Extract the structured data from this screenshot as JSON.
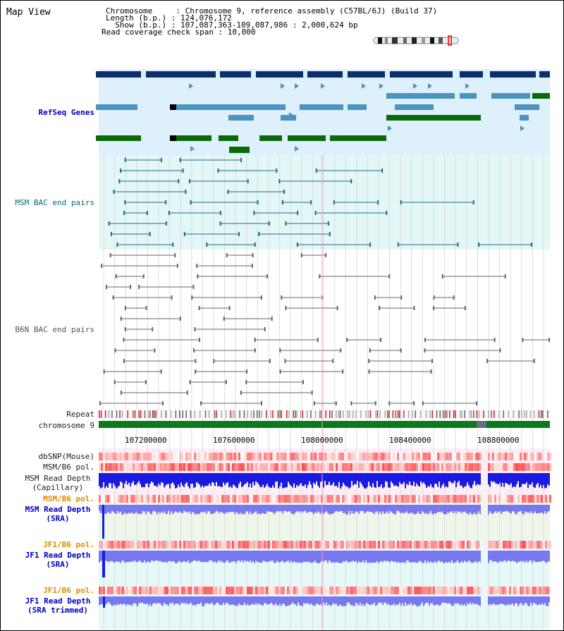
{
  "title": "Map View",
  "info": {
    "chromosome": "Chromosome     : Chromosome 9, reference assembly (C57BL/6J) (Build 37)",
    "length": "Length (b.p.) : 124,076,172",
    "show": "  Show (b.p.) : 107,087,363-109,087,986 : 2,000,624 bp",
    "span": "Read coverage check span : 10,000"
  },
  "tracks": {
    "refseq": "RefSeq Genes",
    "msm_bac": "MSM BAC end pairs",
    "b6n_bac": "B6N BAC end pairs",
    "repeat": "Repeat",
    "chromosome": "chromosome 9",
    "dbsnp": "dbSNP(Mouse)",
    "msm_pol_1": "MSM/B6 pol.",
    "msm_depth_cap_1": "MSM Read Depth",
    "msm_depth_cap_2": "(Capillary)",
    "msm_pol_2": "MSM/B6 pol.",
    "msm_depth_sra_1": "MSM Read Depth",
    "msm_depth_sra_2": "(SRA)",
    "jf1_pol_1": "JF1/B6 pol.",
    "jf1_depth_sra_1": "JF1 Read Depth",
    "jf1_depth_sra_2": "(SRA)",
    "jf1_pol_2": "JF1/B6 pol.",
    "jf1_depth_trim_1": "JF1 Read Depth",
    "jf1_depth_trim_2": "(SRA trimmed)"
  },
  "axis": {
    "ticks": [
      "107200000",
      "107600000",
      "108000000",
      "108400000",
      "108800000"
    ]
  },
  "colors": {
    "refseq_bg": "#ddf0fb",
    "msm_bac_bg": "#e3f7f7",
    "gene_dark": "#0a2f6a",
    "gene_mid": "#4a94c0",
    "gene_green": "#0a6a0a",
    "depth_dark": "#1a1ae0",
    "depth_light": "#7878f0",
    "chrom_green": "#0a7a1a"
  }
}
